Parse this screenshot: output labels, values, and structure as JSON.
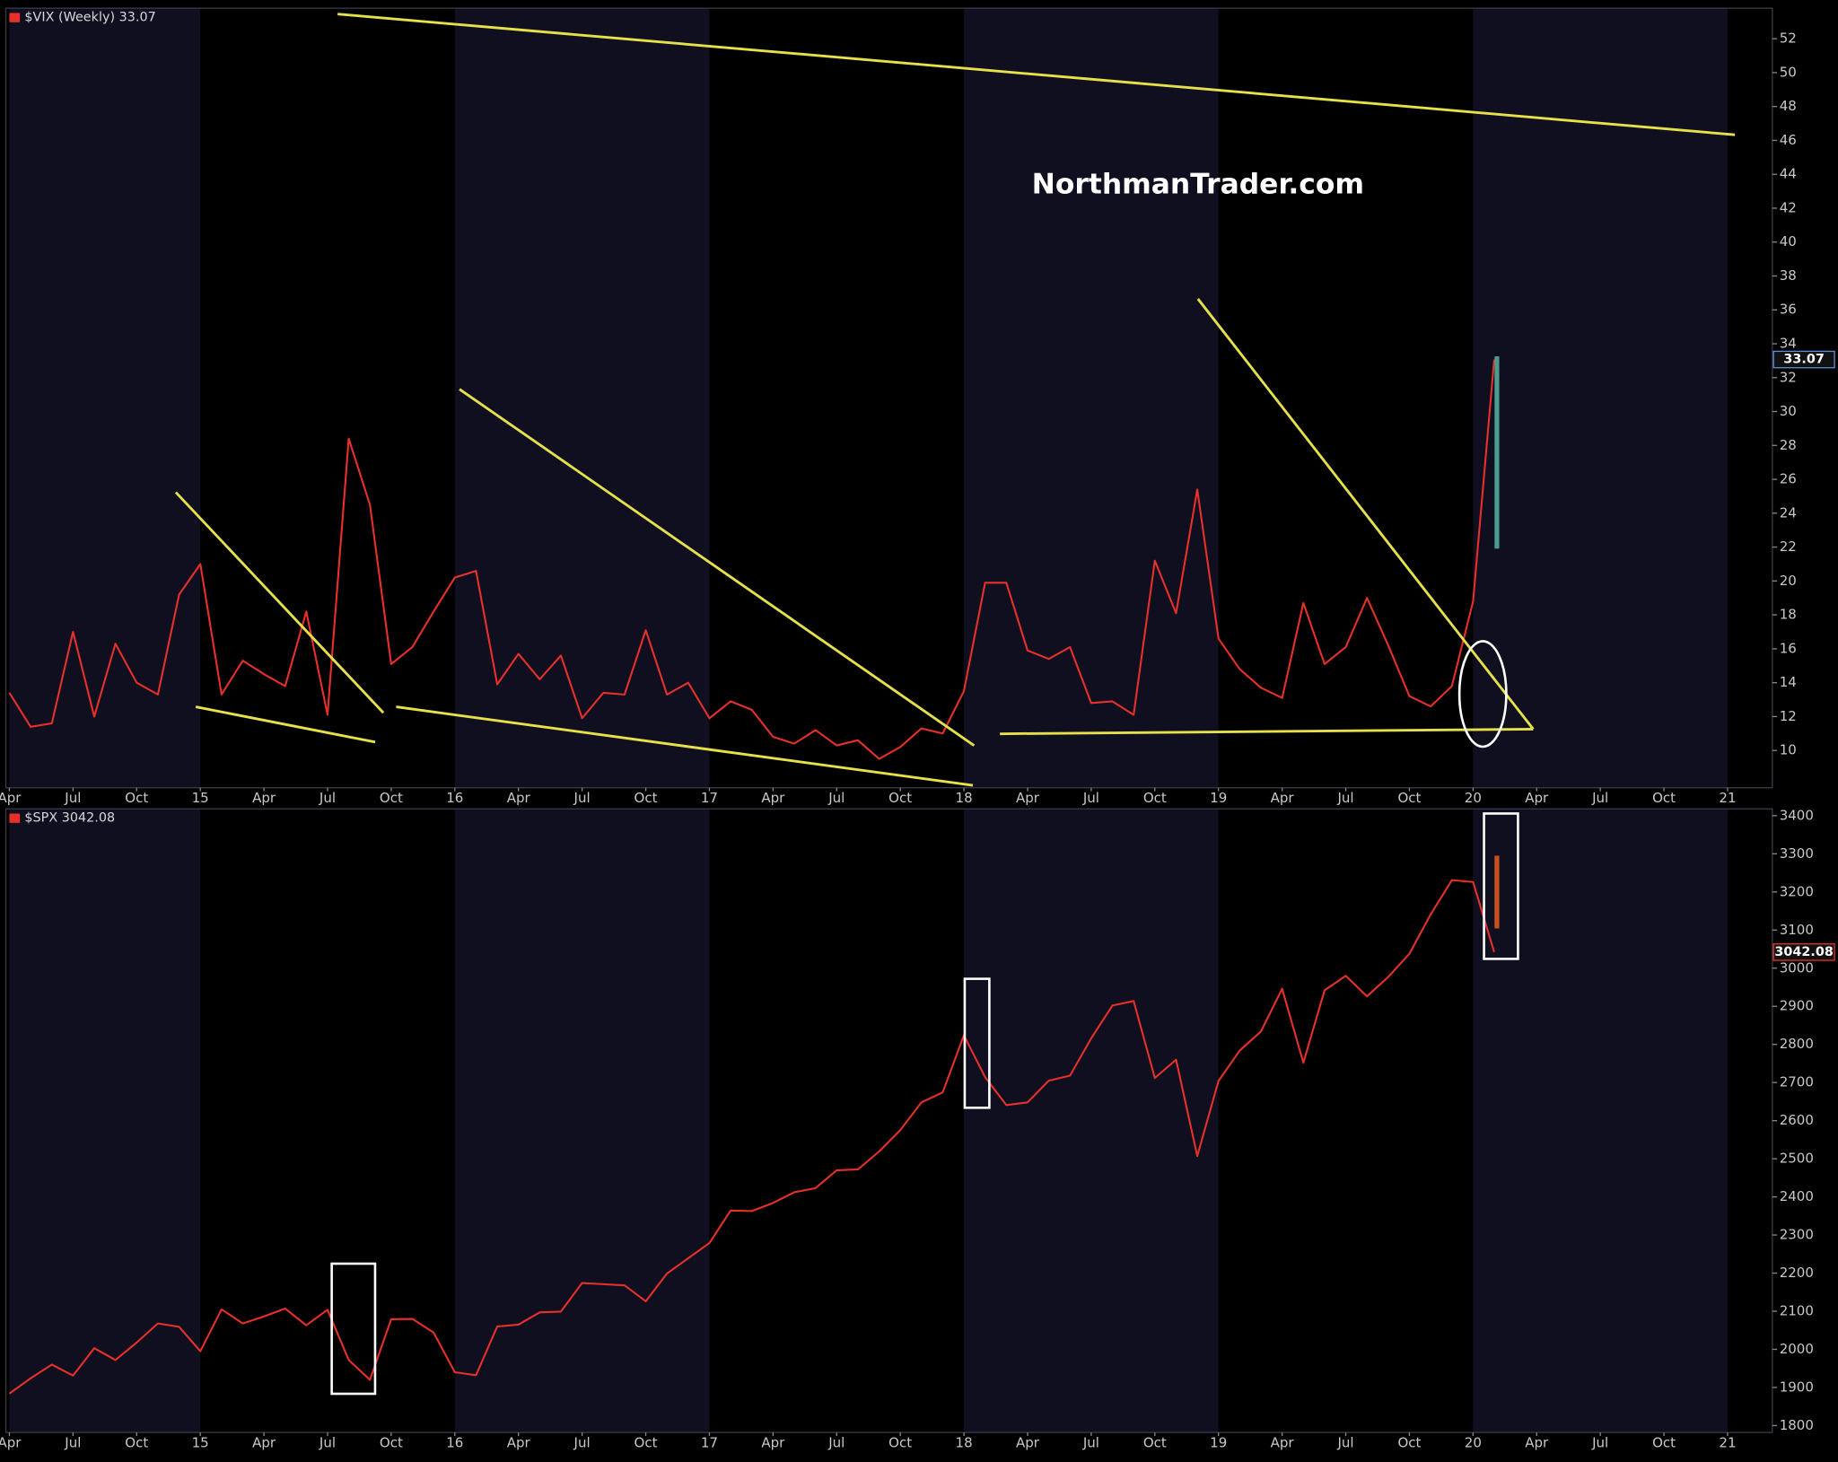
{
  "watermark": "NorthmanTrader.com",
  "chart_data": [
    {
      "type": "line",
      "title": "$VIX (Weekly) 33.07",
      "color": "#e8302a",
      "last_value": 33.07,
      "badge_color": "#5b8fd6",
      "x": [
        "2014-04",
        "2014-05",
        "2014-06",
        "2014-07",
        "2014-08",
        "2014-09",
        "2014-10",
        "2014-11",
        "2014-12",
        "2015-01",
        "2015-02",
        "2015-03",
        "2015-04",
        "2015-05",
        "2015-06",
        "2015-07",
        "2015-08",
        "2015-09",
        "2015-10",
        "2015-11",
        "2015-12",
        "2016-01",
        "2016-02",
        "2016-03",
        "2016-04",
        "2016-05",
        "2016-06",
        "2016-07",
        "2016-08",
        "2016-09",
        "2016-10",
        "2016-11",
        "2016-12",
        "2017-01",
        "2017-02",
        "2017-03",
        "2017-04",
        "2017-05",
        "2017-06",
        "2017-07",
        "2017-08",
        "2017-09",
        "2017-10",
        "2017-11",
        "2017-12",
        "2018-01",
        "2018-02",
        "2018-03",
        "2018-04",
        "2018-05",
        "2018-06",
        "2018-07",
        "2018-08",
        "2018-09",
        "2018-10",
        "2018-11",
        "2018-12",
        "2019-01",
        "2019-02",
        "2019-03",
        "2019-04",
        "2019-05",
        "2019-06",
        "2019-07",
        "2019-08",
        "2019-09",
        "2019-10",
        "2019-11",
        "2019-12",
        "2020-01",
        "2020-02"
      ],
      "values": [
        13.4,
        11.4,
        11.6,
        17,
        12,
        16.3,
        14,
        13.3,
        19.2,
        21,
        13.3,
        15.3,
        14.5,
        13.8,
        18.2,
        12.1,
        28.4,
        24.5,
        15.1,
        16.1,
        18.2,
        20.2,
        20.6,
        13.9,
        15.7,
        14.2,
        15.6,
        11.9,
        13.4,
        13.3,
        17.1,
        13.3,
        14,
        11.9,
        12.9,
        12.4,
        10.8,
        10.4,
        11.2,
        10.3,
        10.6,
        9.5,
        10.2,
        11.3,
        11,
        13.5,
        19.9,
        19.9,
        15.9,
        15.4,
        16.1,
        12.8,
        12.9,
        12.1,
        21.2,
        18.1,
        25.4,
        16.6,
        14.8,
        13.7,
        13.1,
        18.7,
        15.1,
        16.1,
        19,
        16.2,
        13.2,
        12.6,
        13.8,
        18.8,
        33.07
      ],
      "xlim": [
        "2014-04",
        "2021-03"
      ],
      "xticks": [
        {
          "value": "2014-04",
          "label": "Apr"
        },
        {
          "value": "2014-07",
          "label": "Jul"
        },
        {
          "value": "2014-10",
          "label": "Oct"
        },
        {
          "value": "2015-01",
          "label": "15"
        },
        {
          "value": "2015-04",
          "label": "Apr"
        },
        {
          "value": "2015-07",
          "label": "Jul"
        },
        {
          "value": "2015-10",
          "label": "Oct"
        },
        {
          "value": "2016-01",
          "label": "16"
        },
        {
          "value": "2016-04",
          "label": "Apr"
        },
        {
          "value": "2016-07",
          "label": "Jul"
        },
        {
          "value": "2016-10",
          "label": "Oct"
        },
        {
          "value": "2017-01",
          "label": "17"
        },
        {
          "value": "2017-04",
          "label": "Apr"
        },
        {
          "value": "2017-07",
          "label": "Jul"
        },
        {
          "value": "2017-10",
          "label": "Oct"
        },
        {
          "value": "2018-01",
          "label": "18"
        },
        {
          "value": "2018-04",
          "label": "Apr"
        },
        {
          "value": "2018-07",
          "label": "Jul"
        },
        {
          "value": "2018-10",
          "label": "Oct"
        },
        {
          "value": "2019-01",
          "label": "19"
        },
        {
          "value": "2019-04",
          "label": "Apr"
        },
        {
          "value": "2019-07",
          "label": "Jul"
        },
        {
          "value": "2019-10",
          "label": "Oct"
        },
        {
          "value": "2020-01",
          "label": "20"
        },
        {
          "value": "2020-04",
          "label": "Apr"
        },
        {
          "value": "2020-07",
          "label": "Jul"
        },
        {
          "value": "2020-10",
          "label": "Oct"
        },
        {
          "value": "2021-01",
          "label": "21"
        }
      ],
      "ylim": [
        7.8,
        53.8
      ],
      "yticks": [
        10,
        12,
        14,
        16,
        18,
        20,
        22,
        24,
        26,
        28,
        30,
        32,
        34,
        36,
        38,
        40,
        42,
        44,
        46,
        48,
        50,
        52
      ]
    },
    {
      "type": "line",
      "title": "$SPX 3042.08",
      "color": "#e8302a",
      "last_value": 3042.08,
      "badge_color": "#e8302a",
      "x": [
        "2014-04",
        "2014-05",
        "2014-06",
        "2014-07",
        "2014-08",
        "2014-09",
        "2014-10",
        "2014-11",
        "2014-12",
        "2015-01",
        "2015-02",
        "2015-03",
        "2015-04",
        "2015-05",
        "2015-06",
        "2015-07",
        "2015-08",
        "2015-09",
        "2015-10",
        "2015-11",
        "2015-12",
        "2016-01",
        "2016-02",
        "2016-03",
        "2016-04",
        "2016-05",
        "2016-06",
        "2016-07",
        "2016-08",
        "2016-09",
        "2016-10",
        "2016-11",
        "2016-12",
        "2017-01",
        "2017-02",
        "2017-03",
        "2017-04",
        "2017-05",
        "2017-06",
        "2017-07",
        "2017-08",
        "2017-09",
        "2017-10",
        "2017-11",
        "2017-12",
        "2018-01",
        "2018-02",
        "2018-03",
        "2018-04",
        "2018-05",
        "2018-06",
        "2018-07",
        "2018-08",
        "2018-09",
        "2018-10",
        "2018-11",
        "2018-12",
        "2019-01",
        "2019-02",
        "2019-03",
        "2019-04",
        "2019-05",
        "2019-06",
        "2019-07",
        "2019-08",
        "2019-09",
        "2019-10",
        "2019-11",
        "2019-12",
        "2020-01",
        "2020-02"
      ],
      "values": [
        1884,
        1924,
        1960,
        1931,
        2003,
        1972,
        2018,
        2068,
        2059,
        1995,
        2105,
        2068,
        2086,
        2107,
        2063,
        2104,
        1972,
        1920,
        2079,
        2080,
        2044,
        1940,
        1932,
        2060,
        2065,
        2097,
        2099,
        2174,
        2171,
        2168,
        2126,
        2199,
        2239,
        2279,
        2364,
        2363,
        2384,
        2412,
        2423,
        2470,
        2472,
        2519,
        2575,
        2648,
        2674,
        2824,
        2714,
        2641,
        2648,
        2705,
        2718,
        2816,
        2902,
        2914,
        2712,
        2760,
        2507,
        2704,
        2784,
        2834,
        2946,
        2752,
        2942,
        2980,
        2926,
        2977,
        3038,
        3141,
        3231,
        3226,
        3042.08
      ],
      "xlim": [
        "2014-04",
        "2021-03"
      ],
      "xticks": [
        {
          "value": "2014-04",
          "label": "Apr"
        },
        {
          "value": "2014-07",
          "label": "Jul"
        },
        {
          "value": "2014-10",
          "label": "Oct"
        },
        {
          "value": "2015-01",
          "label": "15"
        },
        {
          "value": "2015-04",
          "label": "Apr"
        },
        {
          "value": "2015-07",
          "label": "Jul"
        },
        {
          "value": "2015-10",
          "label": "Oct"
        },
        {
          "value": "2016-01",
          "label": "16"
        },
        {
          "value": "2016-04",
          "label": "Apr"
        },
        {
          "value": "2016-07",
          "label": "Jul"
        },
        {
          "value": "2016-10",
          "label": "Oct"
        },
        {
          "value": "2017-01",
          "label": "17"
        },
        {
          "value": "2017-04",
          "label": "Apr"
        },
        {
          "value": "2017-07",
          "label": "Jul"
        },
        {
          "value": "2017-10",
          "label": "Oct"
        },
        {
          "value": "2018-01",
          "label": "18"
        },
        {
          "value": "2018-04",
          "label": "Apr"
        },
        {
          "value": "2018-07",
          "label": "Jul"
        },
        {
          "value": "2018-10",
          "label": "Oct"
        },
        {
          "value": "2019-01",
          "label": "19"
        },
        {
          "value": "2019-04",
          "label": "Apr"
        },
        {
          "value": "2019-07",
          "label": "Jul"
        },
        {
          "value": "2019-10",
          "label": "Oct"
        },
        {
          "value": "2020-01",
          "label": "20"
        },
        {
          "value": "2020-04",
          "label": "Apr"
        },
        {
          "value": "2020-07",
          "label": "Jul"
        },
        {
          "value": "2020-10",
          "label": "Oct"
        },
        {
          "value": "2021-01",
          "label": "21"
        }
      ],
      "ylim": [
        1782,
        3418
      ],
      "yticks": [
        1800,
        1900,
        2000,
        2100,
        2200,
        2300,
        2400,
        2500,
        2600,
        2700,
        2800,
        2900,
        3000,
        3100,
        3200,
        3300,
        3400
      ]
    }
  ]
}
